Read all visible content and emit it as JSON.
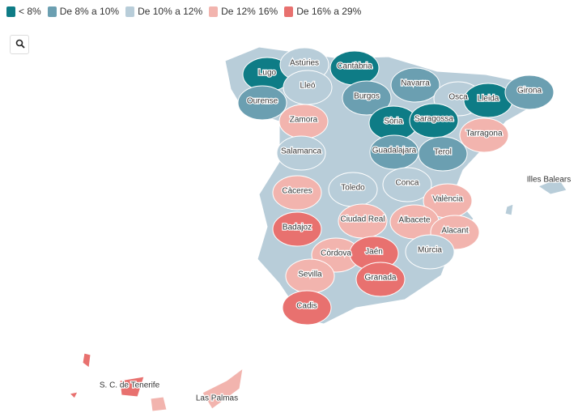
{
  "legend": [
    {
      "label": "< 8%",
      "color": "#0e7c86"
    },
    {
      "label": "De 8% a 10%",
      "color": "#6b9fb1"
    },
    {
      "label": "De 10% a 12%",
      "color": "#b8cdd9"
    },
    {
      "label": "De 12% 16%",
      "color": "#f2b4ae"
    },
    {
      "label": "De 16% a 29%",
      "color": "#e8716f"
    }
  ],
  "provinces": [
    {
      "name": "Lugo",
      "color": "#0e7c86"
    },
    {
      "name": "Astúries",
      "color": "#b8cdd9"
    },
    {
      "name": "Cantàbria",
      "color": "#0e7c86"
    },
    {
      "name": "Navarra",
      "color": "#6b9fb1"
    },
    {
      "name": "Lleó",
      "color": "#b8cdd9"
    },
    {
      "name": "Ourense",
      "color": "#6b9fb1"
    },
    {
      "name": "Burgos",
      "color": "#6b9fb1"
    },
    {
      "name": "Osca",
      "color": "#b8cdd9"
    },
    {
      "name": "Lleida",
      "color": "#0e7c86"
    },
    {
      "name": "Girona",
      "color": "#6b9fb1"
    },
    {
      "name": "Zamora",
      "color": "#f2b4ae"
    },
    {
      "name": "Sòria",
      "color": "#0e7c86"
    },
    {
      "name": "Saragossa",
      "color": "#0e7c86"
    },
    {
      "name": "Tarragona",
      "color": "#f2b4ae"
    },
    {
      "name": "Salamanca",
      "color": "#b8cdd9"
    },
    {
      "name": "Guadalajara",
      "color": "#6b9fb1"
    },
    {
      "name": "Terol",
      "color": "#6b9fb1"
    },
    {
      "name": "Illes Balears",
      "color": "#b8cdd9"
    },
    {
      "name": "Càceres",
      "color": "#f2b4ae"
    },
    {
      "name": "Toledo",
      "color": "#b8cdd9"
    },
    {
      "name": "Conca",
      "color": "#b8cdd9"
    },
    {
      "name": "València",
      "color": "#f2b4ae"
    },
    {
      "name": "Ciudad Real",
      "color": "#f2b4ae"
    },
    {
      "name": "Albacete",
      "color": "#f2b4ae"
    },
    {
      "name": "Badajoz",
      "color": "#e8716f"
    },
    {
      "name": "Alacant",
      "color": "#f2b4ae"
    },
    {
      "name": "Còrdova",
      "color": "#f2b4ae"
    },
    {
      "name": "Jaén",
      "color": "#e8716f"
    },
    {
      "name": "Múrcia",
      "color": "#b8cdd9"
    },
    {
      "name": "Sevilla",
      "color": "#f2b4ae"
    },
    {
      "name": "Granada",
      "color": "#e8716f"
    },
    {
      "name": "Cadis",
      "color": "#e8716f"
    },
    {
      "name": "S. C. de Tenerife",
      "color": "#e8716f"
    },
    {
      "name": "Las Palmas",
      "color": "#f2b4ae"
    }
  ]
}
